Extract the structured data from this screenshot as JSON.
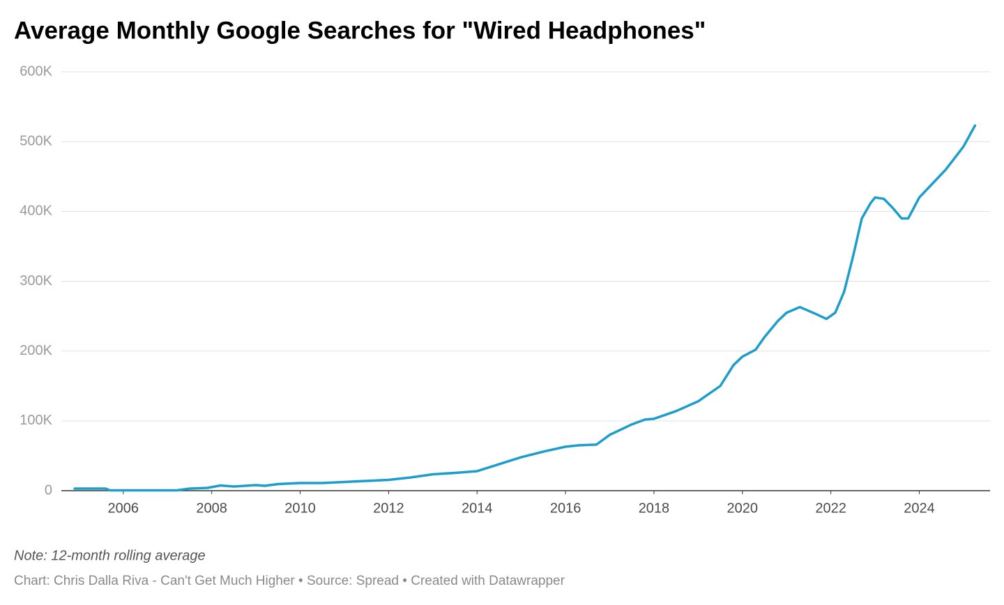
{
  "chart_data": {
    "type": "line",
    "title": "Average Monthly Google Searches for \"Wired Headphones\"",
    "note": "Note: 12-month rolling average",
    "credit": "Chart: Chris Dalla Riva - Can't Get Much Higher • Source: Spread • Created with Datawrapper",
    "x": [
      2004.9,
      2005.6,
      2005.7,
      2007.2,
      2007.5,
      2007.9,
      2008.2,
      2008.5,
      2009.0,
      2009.2,
      2009.5,
      2010.0,
      2010.5,
      2011.0,
      2011.5,
      2012.0,
      2012.5,
      2013.0,
      2013.5,
      2014.0,
      2014.5,
      2015.0,
      2015.5,
      2016.0,
      2016.3,
      2016.7,
      2017.0,
      2017.5,
      2017.8,
      2018.0,
      2018.5,
      2019.0,
      2019.5,
      2019.8,
      2020.0,
      2020.3,
      2020.5,
      2020.8,
      2021.0,
      2021.3,
      2021.7,
      2021.9,
      2022.1,
      2022.3,
      2022.5,
      2022.7,
      2022.9,
      2023.0,
      2023.2,
      2023.4,
      2023.6,
      2023.75,
      2024.0,
      2024.3,
      2024.6,
      2025.0,
      2025.26
    ],
    "series": [
      {
        "name": "Wired Headphones",
        "color": "#1d9dcb",
        "values": [
          3000,
          3000,
          500,
          500,
          3000,
          4000,
          7500,
          6000,
          8000,
          7000,
          9500,
          11000,
          11000,
          12500,
          14000,
          15500,
          19000,
          23500,
          25500,
          28000,
          38000,
          48000,
          56000,
          63000,
          65000,
          66000,
          80000,
          95000,
          102000,
          103000,
          114000,
          128000,
          150000,
          180000,
          192000,
          202000,
          220000,
          243000,
          255000,
          263000,
          252000,
          246000,
          255000,
          285000,
          335000,
          390000,
          412000,
          420000,
          418000,
          405000,
          390000,
          390000,
          420000,
          440000,
          460000,
          493000,
          523000
        ]
      }
    ],
    "xlim": [
      2004.6,
      2025.6
    ],
    "xticks": [
      2006,
      2008,
      2010,
      2012,
      2014,
      2016,
      2018,
      2020,
      2022,
      2024
    ],
    "ylim": [
      0,
      600000
    ],
    "yticks": [
      0,
      {
        "value": 100000,
        "label": "100K"
      },
      {
        "value": 200000,
        "label": "200K"
      },
      {
        "value": 300000,
        "label": "300K"
      },
      {
        "value": 400000,
        "label": "400K"
      },
      {
        "value": 500000,
        "label": "500K"
      },
      {
        "value": 600000,
        "label": "600K"
      }
    ],
    "grid": true
  }
}
